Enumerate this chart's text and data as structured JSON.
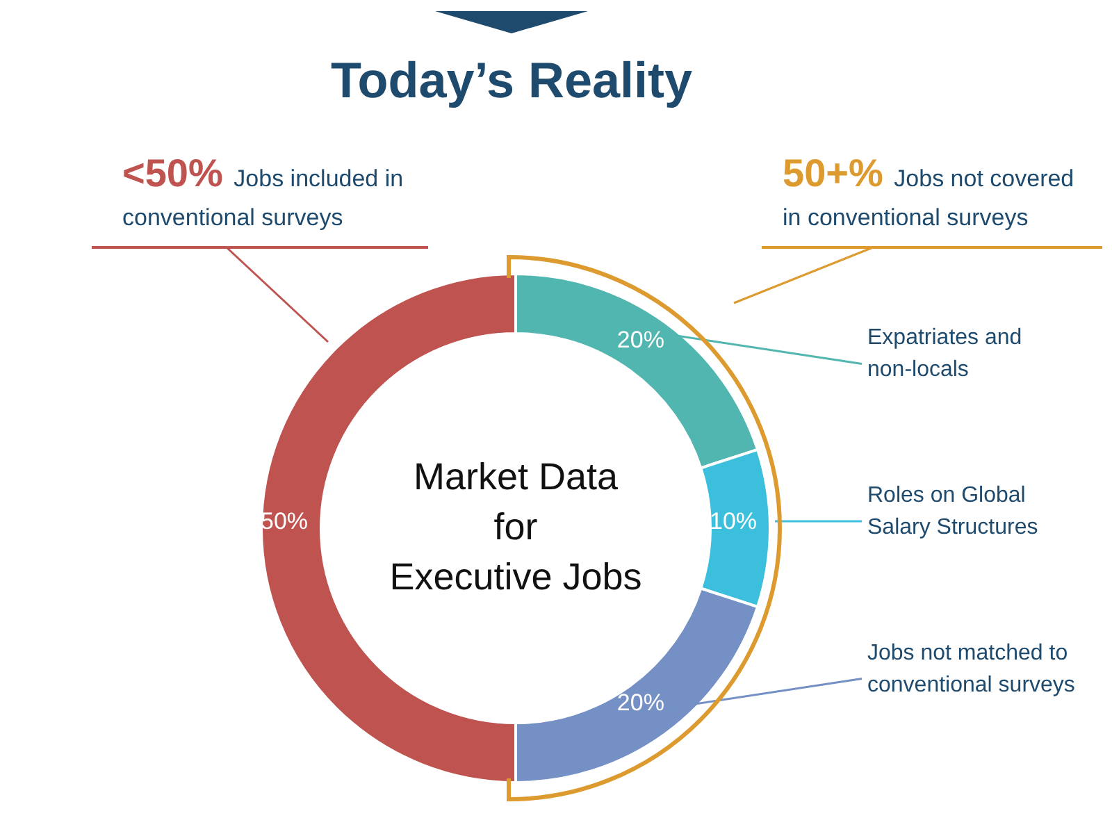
{
  "chart_data": {
    "type": "donut",
    "title": "Today’s Reality",
    "categories": [
      "Expatriates and non-locals",
      "Roles on Global Salary Structures",
      "Jobs not matched to conventional surveys",
      null
    ],
    "values": [
      20,
      10,
      20,
      50
    ],
    "colors": [
      "#52b6b0",
      "#3bbfdc",
      "#7490c4",
      "#bf5350"
    ],
    "value_labels": [
      "20%",
      "10%",
      "20%",
      "50%"
    ],
    "annotations": [
      "<50% Jobs included in conventional surveys",
      "50+% Jobs not covered in conventional surveys",
      "Market Data for Executive Jobs"
    ],
    "legend": false
  }
}
